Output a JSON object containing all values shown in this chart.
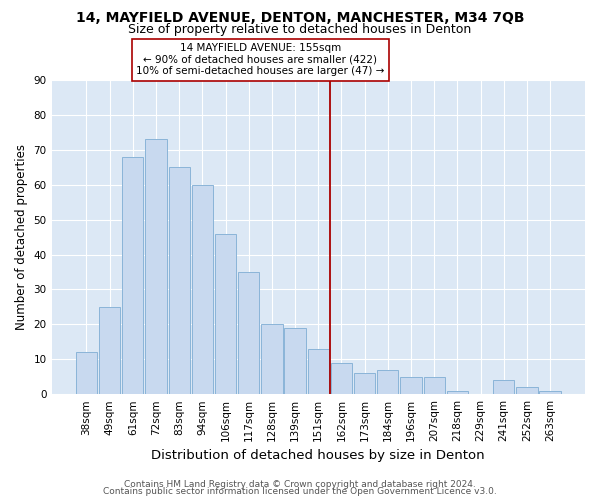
{
  "title": "14, MAYFIELD AVENUE, DENTON, MANCHESTER, M34 7QB",
  "subtitle": "Size of property relative to detached houses in Denton",
  "xlabel": "Distribution of detached houses by size in Denton",
  "ylabel": "Number of detached properties",
  "bar_labels": [
    "38sqm",
    "49sqm",
    "61sqm",
    "72sqm",
    "83sqm",
    "94sqm",
    "106sqm",
    "117sqm",
    "128sqm",
    "139sqm",
    "151sqm",
    "162sqm",
    "173sqm",
    "184sqm",
    "196sqm",
    "207sqm",
    "218sqm",
    "229sqm",
    "241sqm",
    "252sqm",
    "263sqm"
  ],
  "bar_heights": [
    12,
    25,
    68,
    73,
    65,
    60,
    46,
    35,
    20,
    19,
    13,
    9,
    6,
    7,
    5,
    5,
    1,
    0,
    4,
    2,
    1
  ],
  "bar_color": "#c8d9ef",
  "bar_edge_color": "#8ab4d8",
  "vline_x_index": 10.5,
  "vline_color": "#aa0000",
  "annotation_title": "14 MAYFIELD AVENUE: 155sqm",
  "annotation_line1": "← 90% of detached houses are smaller (422)",
  "annotation_line2": "10% of semi-detached houses are larger (47) →",
  "annotation_box_color": "#ffffff",
  "annotation_box_edge": "#aa0000",
  "ylim": [
    0,
    90
  ],
  "yticks": [
    0,
    10,
    20,
    30,
    40,
    50,
    60,
    70,
    80,
    90
  ],
  "footer1": "Contains HM Land Registry data © Crown copyright and database right 2024.",
  "footer2": "Contains public sector information licensed under the Open Government Licence v3.0.",
  "bg_color": "#ffffff",
  "plot_bg_color": "#dce8f5",
  "grid_color": "#ffffff",
  "title_fontsize": 10,
  "subtitle_fontsize": 9,
  "xlabel_fontsize": 9.5,
  "ylabel_fontsize": 8.5,
  "tick_fontsize": 7.5,
  "footer_fontsize": 6.5
}
